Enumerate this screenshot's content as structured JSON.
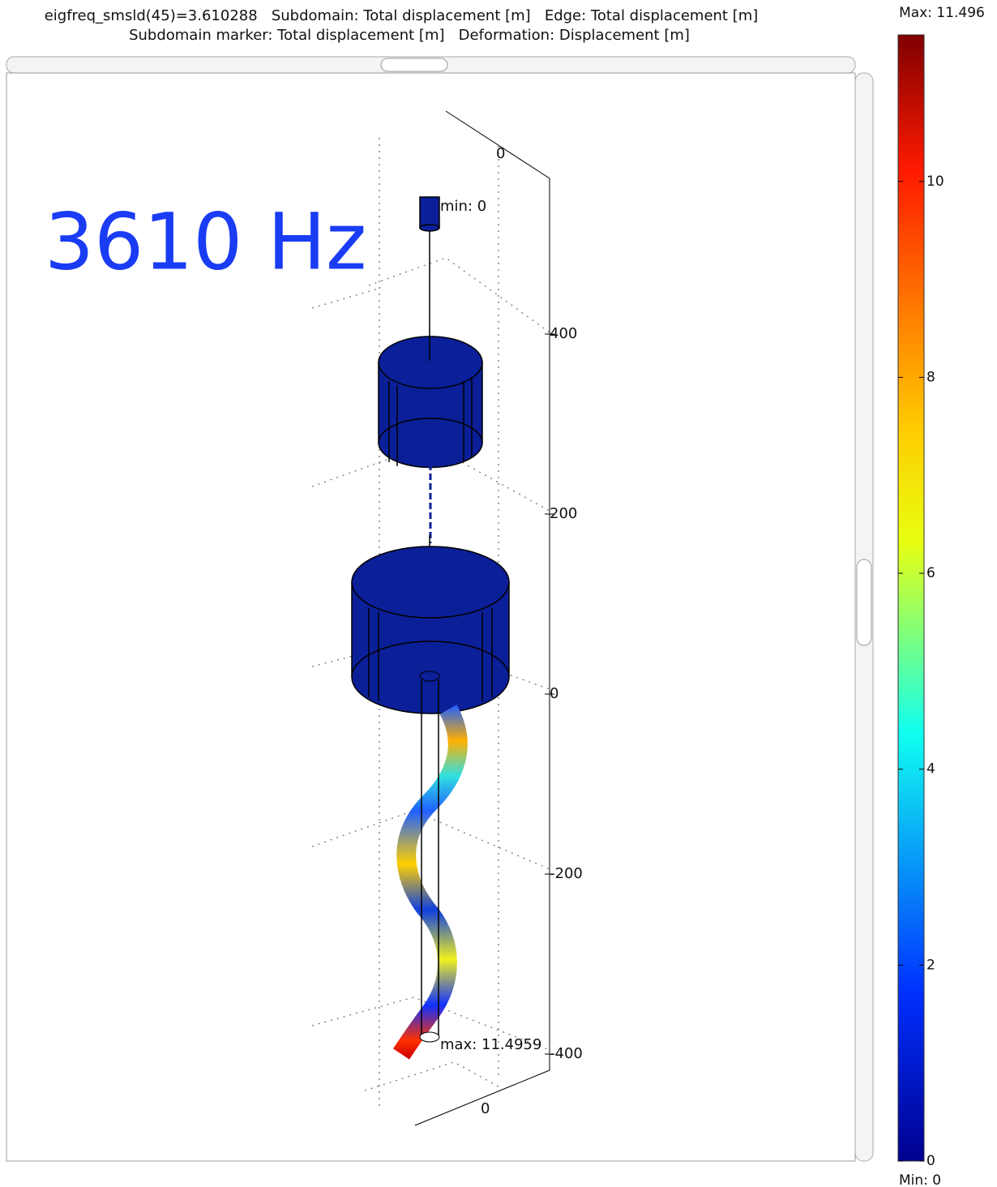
{
  "header": {
    "line1": "eigfreq_smsld(45)=3.610288   Subdomain: Total displacement [m]   Edge: Total displacement [m]",
    "line2": "Subdomain marker: Total displacement [m]   Deformation: Displacement [m]"
  },
  "overlay_label": "3610 Hz",
  "annotations": {
    "min": "min: 0",
    "max": "max: 11.4959"
  },
  "axis_labels": {
    "z": [
      400,
      200,
      0,
      -200,
      -400
    ],
    "top": 0,
    "bottom": 0
  },
  "colorbar": {
    "max_label": "Max: 11.496",
    "min_label": "Min: 0",
    "range": [
      0,
      11.496
    ],
    "ticks": [
      0,
      2,
      4,
      6,
      8,
      10
    ]
  }
}
